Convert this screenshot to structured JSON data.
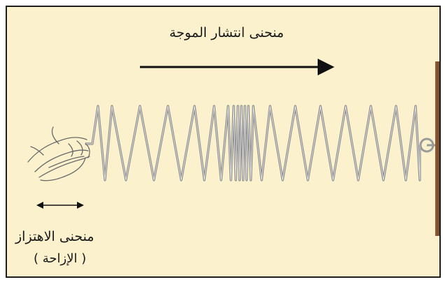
{
  "labels": {
    "propagation": "منحنى انتشار الموجة",
    "oscillation": "منحنى الاهتزاز",
    "displacement": "( الإزاحة )"
  },
  "icons": {
    "hand": "hand-icon",
    "propagation_arrow": "right-arrow",
    "oscillation_arrow": "double-arrow"
  },
  "colors": {
    "background": "#fbf1cd",
    "border": "#1e1e1e",
    "wall": "#7a4a2a",
    "spring": "#8a8a8a",
    "arrow": "#111111"
  }
}
